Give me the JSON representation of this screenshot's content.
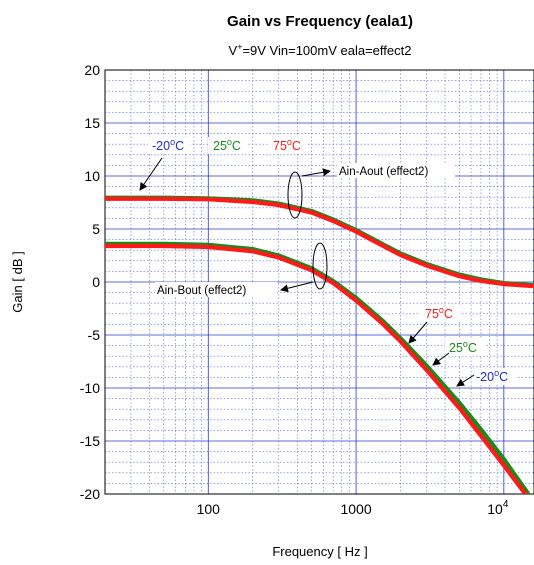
{
  "chart_data": {
    "type": "line",
    "title": "Gain vs Frequency (eala1)",
    "subtitle": {
      "prefix": "V",
      "superscript": "+",
      "rest": "=9V Vin=100mV eala=effect2"
    },
    "xlabel": "Frequency [ Hz ]",
    "ylabel": "Gain [ dB ]",
    "x_scale": "log",
    "xlim": [
      20,
      16000
    ],
    "ylim": [
      -20,
      20
    ],
    "grid": true,
    "y_ticks": [
      "20",
      "15",
      "10",
      "5",
      "0",
      "-5",
      "-10",
      "-15",
      "-20"
    ],
    "x_ticks": [
      {
        "value": 100,
        "label": "100"
      },
      {
        "value": 1000,
        "label": "1000"
      },
      {
        "value": 10000,
        "base": "10",
        "exp": "4"
      }
    ],
    "temperature_labels": [
      {
        "text": "-20",
        "unit": "C",
        "color": "#1f2fbf"
      },
      {
        "text": "25",
        "unit": "C",
        "color": "#1a8a1a"
      },
      {
        "text": "75",
        "unit": "C",
        "color": "#ff1a1a"
      },
      {
        "text": "75",
        "unit": "C",
        "color": "#ff1a1a"
      },
      {
        "text": "25",
        "unit": "C",
        "color": "#1a8a1a"
      },
      {
        "text": "-20",
        "unit": "C",
        "color": "#1f2fbf"
      }
    ],
    "annotations": [
      "Ain-Aout (effect2)",
      "Ain-Bout (effect2)"
    ],
    "series": [
      {
        "group": "Ain-Aout (effect2)",
        "color": "#1f2fbf",
        "x": [
          20,
          50,
          100,
          200,
          300,
          500,
          700,
          1000,
          1500,
          2000,
          3000,
          5000,
          7000,
          10000,
          16000
        ],
        "y": [
          7.9,
          7.9,
          7.85,
          7.6,
          7.3,
          6.6,
          5.8,
          4.8,
          3.5,
          2.6,
          1.6,
          0.6,
          0.15,
          -0.15,
          -0.35
        ]
      },
      {
        "group": "Ain-Aout (effect2)",
        "color": "#1a8a1a",
        "x": [
          20,
          50,
          100,
          200,
          300,
          500,
          700,
          1000,
          1500,
          2000,
          3000,
          5000,
          7000,
          10000,
          16000
        ],
        "y": [
          7.95,
          7.95,
          7.9,
          7.7,
          7.4,
          6.7,
          5.9,
          4.9,
          3.6,
          2.7,
          1.7,
          0.7,
          0.25,
          -0.1,
          -0.3
        ]
      },
      {
        "group": "Ain-Aout (effect2)",
        "color": "#ff1a1a",
        "x": [
          20,
          50,
          100,
          200,
          300,
          500,
          700,
          1000,
          1500,
          2000,
          3000,
          5000,
          7000,
          10000,
          16000
        ],
        "y": [
          7.85,
          7.85,
          7.8,
          7.55,
          7.25,
          6.55,
          5.75,
          4.75,
          3.45,
          2.55,
          1.55,
          0.55,
          0.1,
          -0.2,
          -0.4
        ]
      },
      {
        "group": "Ain-Bout (effect2)",
        "color": "#1f2fbf",
        "x": [
          20,
          50,
          100,
          200,
          300,
          500,
          700,
          1000,
          1500,
          2000,
          3000,
          5000,
          7000,
          10000,
          14500
        ],
        "y": [
          3.5,
          3.5,
          3.4,
          3.0,
          2.4,
          1.2,
          0.0,
          -1.6,
          -3.7,
          -5.4,
          -8.0,
          -11.5,
          -14.0,
          -16.8,
          -20.0
        ]
      },
      {
        "group": "Ain-Bout (effect2)",
        "color": "#1a8a1a",
        "x": [
          20,
          50,
          100,
          200,
          300,
          500,
          700,
          1000,
          1500,
          2000,
          3000,
          5000,
          7000,
          10000,
          14500
        ],
        "y": [
          3.6,
          3.6,
          3.5,
          3.1,
          2.5,
          1.3,
          0.1,
          -1.5,
          -3.6,
          -5.3,
          -7.9,
          -11.4,
          -13.9,
          -16.7,
          -19.9
        ]
      },
      {
        "group": "Ain-Bout (effect2)",
        "color": "#ff1a1a",
        "x": [
          20,
          50,
          100,
          200,
          300,
          500,
          700,
          1000,
          1500,
          2000,
          3000,
          5000,
          7000,
          10000,
          14000
        ],
        "y": [
          3.4,
          3.4,
          3.3,
          2.9,
          2.3,
          1.1,
          -0.1,
          -1.75,
          -3.9,
          -5.6,
          -8.3,
          -11.9,
          -14.5,
          -17.3,
          -20.0
        ]
      }
    ]
  }
}
